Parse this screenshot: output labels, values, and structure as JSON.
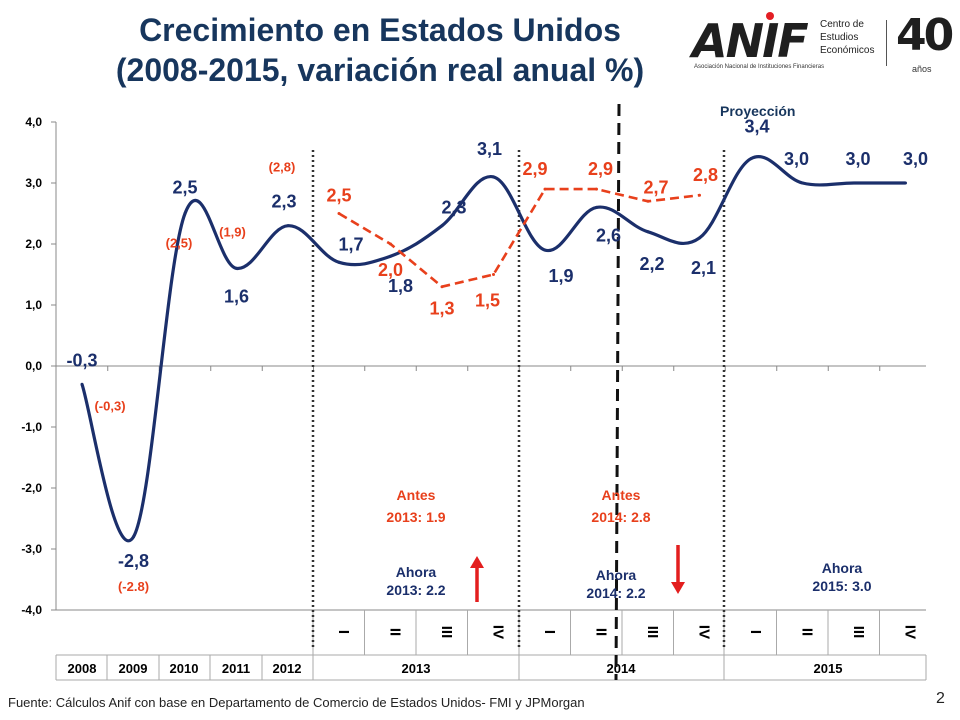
{
  "title_line1": "Crecimiento en Estados Unidos",
  "title_line2": "(2008-2015, variación real anual %)",
  "logo": {
    "brand": "ANIF",
    "subtitle": "Asociación Nacional de Instituciones Financieras",
    "center": "Centro de\nEstudios\nEconómicos",
    "anniversary": "40",
    "anniversary_sub": "años"
  },
  "source": "Fuente: Cálculos Anif con base en Departamento de Comercio de Estados Unidos- FMI y JPMorgan",
  "page_number": "2",
  "colors": {
    "actual": "#1b2f6b",
    "previous": "#e8401c",
    "title": "#17365d",
    "arrow": "#e31e1e"
  },
  "chart_data": {
    "type": "line",
    "ylim": [
      -4,
      4
    ],
    "y_ticks": [
      "4,0",
      "3,0",
      "2,0",
      "1,0",
      "0,0",
      "-1,0",
      "-2,0",
      "-3,0",
      "-4,0"
    ],
    "categories": [
      "2008",
      "2009",
      "2010",
      "2011",
      "2012",
      "2013-I",
      "2013-II",
      "2013-III",
      "2013-IV",
      "2014-I",
      "2014-II",
      "2014-III",
      "2014-IV",
      "2015-I",
      "2015-II",
      "2015-III",
      "2015-IV"
    ],
    "year_labels": [
      "2008",
      "2009",
      "2010",
      "2011",
      "2012",
      "2013",
      "2014",
      "2015"
    ],
    "quarter_labels": [
      "I",
      "II",
      "III",
      "IV"
    ],
    "series": [
      {
        "values": [
          -0.3,
          -2.8,
          2.5,
          1.6,
          2.3,
          1.7,
          1.8,
          2.3,
          3.1,
          1.9,
          2.6,
          2.2,
          2.1,
          3.4,
          3.0,
          3.0,
          3.0
        ],
        "labels": [
          "-0,3",
          "-2,8",
          "2,5",
          "1,6",
          "2,3",
          "1,7",
          "1,8",
          "2,3",
          "3,1",
          "1,9",
          "2,6",
          "2,2",
          "2,1",
          "3,4",
          "3,0",
          "3,0",
          "3,0"
        ]
      },
      {
        "values_at": [
          [
            5,
            2.5
          ],
          [
            6,
            2.0
          ],
          [
            7,
            1.3
          ],
          [
            8,
            1.5
          ],
          [
            9,
            2.9
          ],
          [
            10,
            2.9
          ],
          [
            11,
            2.7
          ],
          [
            12,
            2.8
          ]
        ],
        "labels": [
          "2,5",
          "2,0",
          "1,3",
          "1,5",
          "2,9",
          "2,9",
          "2,7",
          "2,8"
        ]
      }
    ],
    "previous_annual_labels": [
      "(-0,3)",
      "(-2.8)",
      "(2,5)",
      "(1,9)",
      "(2,8)"
    ],
    "projection_label": "Proyección",
    "annotations": [
      {
        "lines": [
          "Antes",
          "2013: 1.9"
        ],
        "color": "previous"
      },
      {
        "lines": [
          "Ahora",
          "2013: 2.2"
        ],
        "color": "actual",
        "arrow": "up"
      },
      {
        "lines": [
          "Antes",
          "2014: 2.8"
        ],
        "color": "previous"
      },
      {
        "lines": [
          "Ahora",
          "2014: 2.2"
        ],
        "color": "actual",
        "arrow": "down"
      },
      {
        "lines": [
          "Ahora",
          "2015: 3.0"
        ],
        "color": "actual"
      }
    ]
  }
}
